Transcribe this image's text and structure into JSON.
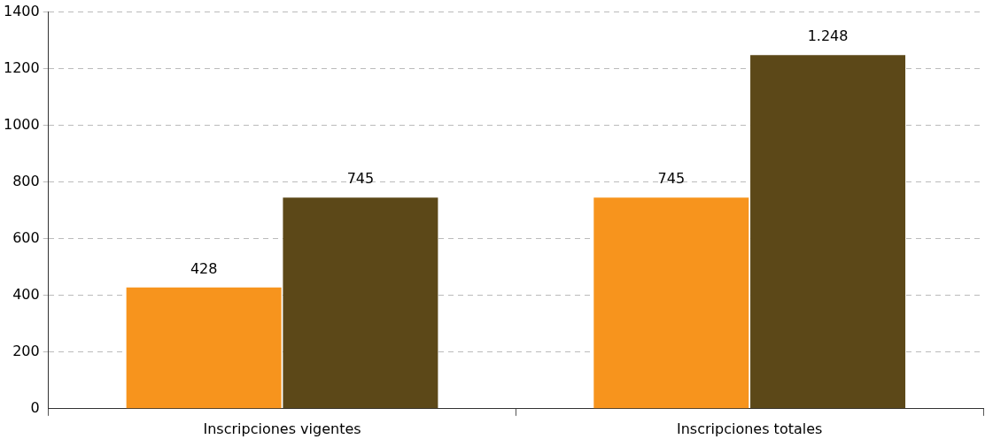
{
  "chart_data": {
    "type": "bar",
    "categories": [
      "Inscripciones vigentes",
      "Inscripciones totales"
    ],
    "series": [
      {
        "color": "#f7941d",
        "values": [
          428,
          745
        ],
        "value_labels": [
          "428",
          "745"
        ]
      },
      {
        "color": "#5c4818",
        "values": [
          745,
          1248
        ],
        "value_labels": [
          "745",
          "1.248"
        ]
      }
    ],
    "ylim": [
      0,
      1400
    ],
    "yticks": [
      0,
      200,
      400,
      600,
      800,
      1000,
      1200,
      1400
    ],
    "grid": "y",
    "legend": false
  }
}
